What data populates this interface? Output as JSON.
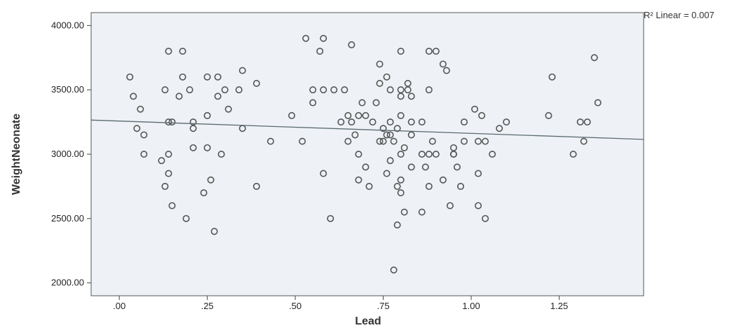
{
  "chart_data": {
    "type": "scatter",
    "title": "",
    "xlabel": "Lead",
    "ylabel": "WeightNeonate",
    "xlim": [
      -0.08,
      1.49
    ],
    "ylim": [
      1900,
      4100
    ],
    "x_ticks": [
      {
        "value": 0.0,
        "label": ".00"
      },
      {
        "value": 0.25,
        "label": ".25"
      },
      {
        "value": 0.5,
        "label": ".50"
      },
      {
        "value": 0.75,
        "label": ".75"
      },
      {
        "value": 1.0,
        "label": "1.00"
      },
      {
        "value": 1.25,
        "label": "1.25"
      }
    ],
    "y_ticks": [
      {
        "value": 2000,
        "label": "2000.00"
      },
      {
        "value": 2500,
        "label": "2500.00"
      },
      {
        "value": 3000,
        "label": "3000.00"
      },
      {
        "value": 3500,
        "label": "3500.00"
      },
      {
        "value": 4000,
        "label": "4000.00"
      }
    ],
    "grid": false,
    "fit_line": {
      "type": "linear",
      "label": "R² Linear = 0.007",
      "x": [
        -0.08,
        1.49
      ],
      "y": [
        3265,
        3115
      ]
    },
    "series": [
      {
        "marker": "open-circle",
        "color": "#555555",
        "points": [
          [
            0.03,
            3600
          ],
          [
            0.04,
            3450
          ],
          [
            0.05,
            3200
          ],
          [
            0.06,
            3350
          ],
          [
            0.07,
            3150
          ],
          [
            0.07,
            3000
          ],
          [
            0.12,
            2950
          ],
          [
            0.13,
            2750
          ],
          [
            0.13,
            3500
          ],
          [
            0.14,
            3800
          ],
          [
            0.14,
            3250
          ],
          [
            0.14,
            3000
          ],
          [
            0.14,
            2850
          ],
          [
            0.15,
            3250
          ],
          [
            0.15,
            2600
          ],
          [
            0.17,
            3450
          ],
          [
            0.18,
            3800
          ],
          [
            0.18,
            3600
          ],
          [
            0.19,
            2500
          ],
          [
            0.2,
            3500
          ],
          [
            0.21,
            3250
          ],
          [
            0.21,
            3200
          ],
          [
            0.21,
            3050
          ],
          [
            0.24,
            2700
          ],
          [
            0.25,
            3600
          ],
          [
            0.25,
            3300
          ],
          [
            0.25,
            3050
          ],
          [
            0.26,
            2800
          ],
          [
            0.27,
            2400
          ],
          [
            0.28,
            3600
          ],
          [
            0.28,
            3450
          ],
          [
            0.29,
            3000
          ],
          [
            0.3,
            3500
          ],
          [
            0.31,
            3350
          ],
          [
            0.34,
            3500
          ],
          [
            0.35,
            3650
          ],
          [
            0.35,
            3200
          ],
          [
            0.39,
            3550
          ],
          [
            0.39,
            2750
          ],
          [
            0.43,
            3100
          ],
          [
            0.49,
            3300
          ],
          [
            0.52,
            3100
          ],
          [
            0.53,
            3900
          ],
          [
            0.55,
            3400
          ],
          [
            0.55,
            3500
          ],
          [
            0.57,
            3800
          ],
          [
            0.58,
            3900
          ],
          [
            0.58,
            3500
          ],
          [
            0.58,
            2850
          ],
          [
            0.6,
            2500
          ],
          [
            0.61,
            3500
          ],
          [
            0.63,
            3250
          ],
          [
            0.64,
            3500
          ],
          [
            0.65,
            3300
          ],
          [
            0.65,
            3100
          ],
          [
            0.66,
            3850
          ],
          [
            0.66,
            3250
          ],
          [
            0.67,
            3150
          ],
          [
            0.68,
            3300
          ],
          [
            0.68,
            3000
          ],
          [
            0.68,
            2800
          ],
          [
            0.69,
            3400
          ],
          [
            0.7,
            3300
          ],
          [
            0.7,
            2900
          ],
          [
            0.71,
            2750
          ],
          [
            0.72,
            3250
          ],
          [
            0.73,
            3400
          ],
          [
            0.74,
            3550
          ],
          [
            0.74,
            3700
          ],
          [
            0.75,
            3100
          ],
          [
            0.75,
            3200
          ],
          [
            0.76,
            3150
          ],
          [
            0.76,
            3600
          ],
          [
            0.77,
            3500
          ],
          [
            0.77,
            3250
          ],
          [
            0.77,
            3150
          ],
          [
            0.77,
            2950
          ],
          [
            0.78,
            3100
          ],
          [
            0.79,
            3200
          ],
          [
            0.79,
            2750
          ],
          [
            0.79,
            2450
          ],
          [
            0.8,
            3800
          ],
          [
            0.8,
            3500
          ],
          [
            0.8,
            3450
          ],
          [
            0.8,
            3300
          ],
          [
            0.8,
            3000
          ],
          [
            0.8,
            2800
          ],
          [
            0.8,
            2700
          ],
          [
            0.81,
            2550
          ],
          [
            0.81,
            3050
          ],
          [
            0.82,
            3500
          ],
          [
            0.82,
            3550
          ],
          [
            0.83,
            3450
          ],
          [
            0.83,
            3250
          ],
          [
            0.83,
            3150
          ],
          [
            0.83,
            2900
          ],
          [
            0.86,
            3250
          ],
          [
            0.86,
            2550
          ],
          [
            0.87,
            2900
          ],
          [
            0.88,
            3800
          ],
          [
            0.88,
            3500
          ],
          [
            0.88,
            3000
          ],
          [
            0.88,
            2750
          ],
          [
            0.89,
            3100
          ],
          [
            0.9,
            3000
          ],
          [
            0.9,
            3800
          ],
          [
            0.92,
            3700
          ],
          [
            0.92,
            2800
          ],
          [
            0.93,
            3650
          ],
          [
            0.94,
            2600
          ],
          [
            0.95,
            3000
          ],
          [
            0.95,
            3050
          ],
          [
            0.96,
            2900
          ],
          [
            0.97,
            2750
          ],
          [
            0.98,
            3250
          ],
          [
            0.98,
            3100
          ],
          [
            1.01,
            3350
          ],
          [
            1.02,
            3100
          ],
          [
            1.02,
            2850
          ],
          [
            1.02,
            2600
          ],
          [
            1.03,
            3300
          ],
          [
            1.04,
            3100
          ],
          [
            1.04,
            2500
          ],
          [
            1.06,
            3000
          ],
          [
            1.08,
            3200
          ],
          [
            1.1,
            3250
          ],
          [
            1.22,
            3300
          ],
          [
            1.23,
            3600
          ],
          [
            1.29,
            3000
          ],
          [
            1.31,
            3250
          ],
          [
            1.32,
            3100
          ],
          [
            1.33,
            3250
          ],
          [
            1.35,
            3750
          ],
          [
            1.36,
            3400
          ],
          [
            0.78,
            2100
          ],
          [
            0.76,
            2850
          ],
          [
            0.74,
            3100
          ],
          [
            0.86,
            3000
          ],
          [
            0.95,
            3000
          ]
        ]
      }
    ]
  }
}
